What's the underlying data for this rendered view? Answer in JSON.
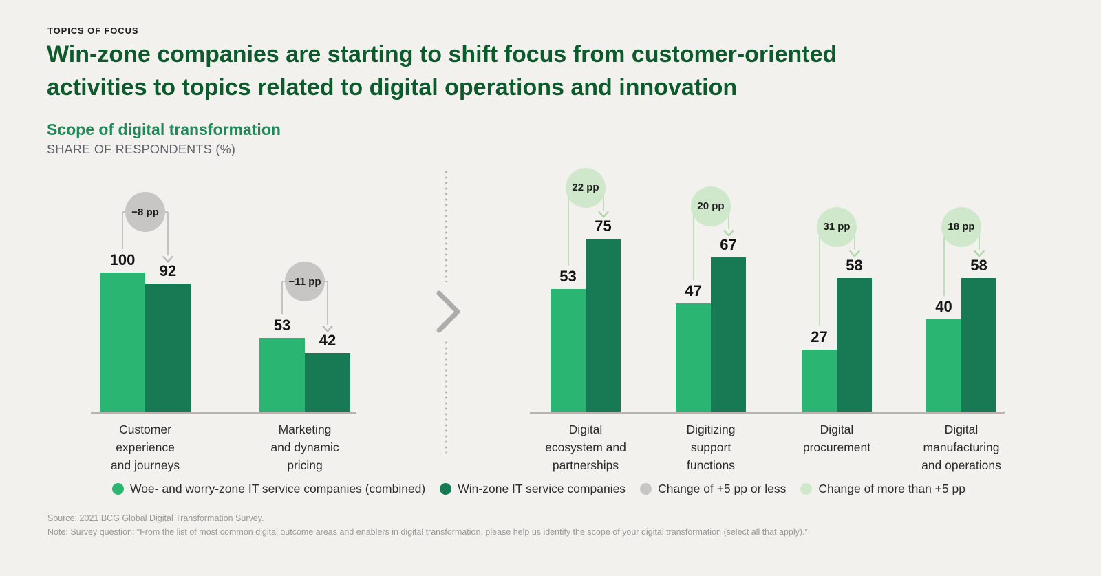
{
  "colors": {
    "background": "#f2f1ee",
    "title_green": "#0d5a2c",
    "accent_green": "#1d8a58",
    "bar_light_green": "#2ab573",
    "bar_dark_green": "#187a55",
    "badge_gray": "#c7c6c4",
    "badge_gray_line": "#c5c4c2",
    "badge_light_green": "#cfe7ca",
    "badge_light_green_line": "#bfdfba",
    "axis_gray": "#b7b5b2"
  },
  "header": {
    "kicker": "TOPICS OF FOCUS",
    "title": "Win-zone companies are starting to shift focus from customer-oriented\nactivities to topics related to digital operations and innovation",
    "chart_title": "Scope of digital transformation",
    "chart_subtitle": "SHARE OF RESPONDENTS (%)"
  },
  "chart_data": [
    {
      "type": "bar",
      "categories": [
        "Customer\nexperience\nand journeys",
        "Marketing\nand dynamic\npricing"
      ],
      "series": [
        {
          "name": "Woe- and worry-zone IT service companies (combined)",
          "values": [
            100,
            53
          ]
        },
        {
          "name": "Win-zone IT service companies",
          "values": [
            92,
            42
          ]
        }
      ],
      "change_badges": [
        "−8 pp",
        "−11 pp"
      ],
      "badge_style": "gray",
      "ylabel": "Share of respondents (%)",
      "ylim": [
        0,
        105
      ],
      "grid": false,
      "value_labels": true
    },
    {
      "type": "bar",
      "categories": [
        "Digital\necosystem and\npartnerships",
        "Digitizing\nsupport\nfunctions",
        "Digital\nprocurement",
        "Digital\nmanufacturing\nand operations"
      ],
      "series": [
        {
          "name": "Woe- and worry-zone IT service companies (combined)",
          "values": [
            53,
            47,
            27,
            40
          ]
        },
        {
          "name": "Win-zone IT service companies",
          "values": [
            75,
            67,
            58,
            58
          ]
        }
      ],
      "change_badges": [
        "22 pp",
        "20 pp",
        "31 pp",
        "18 pp"
      ],
      "badge_style": "light-green",
      "ylabel": "Share of respondents (%)",
      "ylim": [
        0,
        80
      ],
      "grid": false,
      "value_labels": true
    }
  ],
  "legend": {
    "items": [
      {
        "label": "Woe- and worry-zone IT service companies (combined)",
        "color": "#2ab573"
      },
      {
        "label": "Win-zone IT service companies",
        "color": "#187a55"
      },
      {
        "label": "Change of +5 pp or less",
        "color": "#c7c6c4"
      },
      {
        "label": "Change of more than +5 pp",
        "color": "#cfe7ca"
      }
    ]
  },
  "footer": {
    "source": "Source: 2021 BCG Global Digital Transformation Survey.",
    "note": "Note: Survey question: “From the list of most common digital outcome areas and enablers in digital transformation, please help us identify the scope of your digital transformation (select all that apply).”"
  }
}
